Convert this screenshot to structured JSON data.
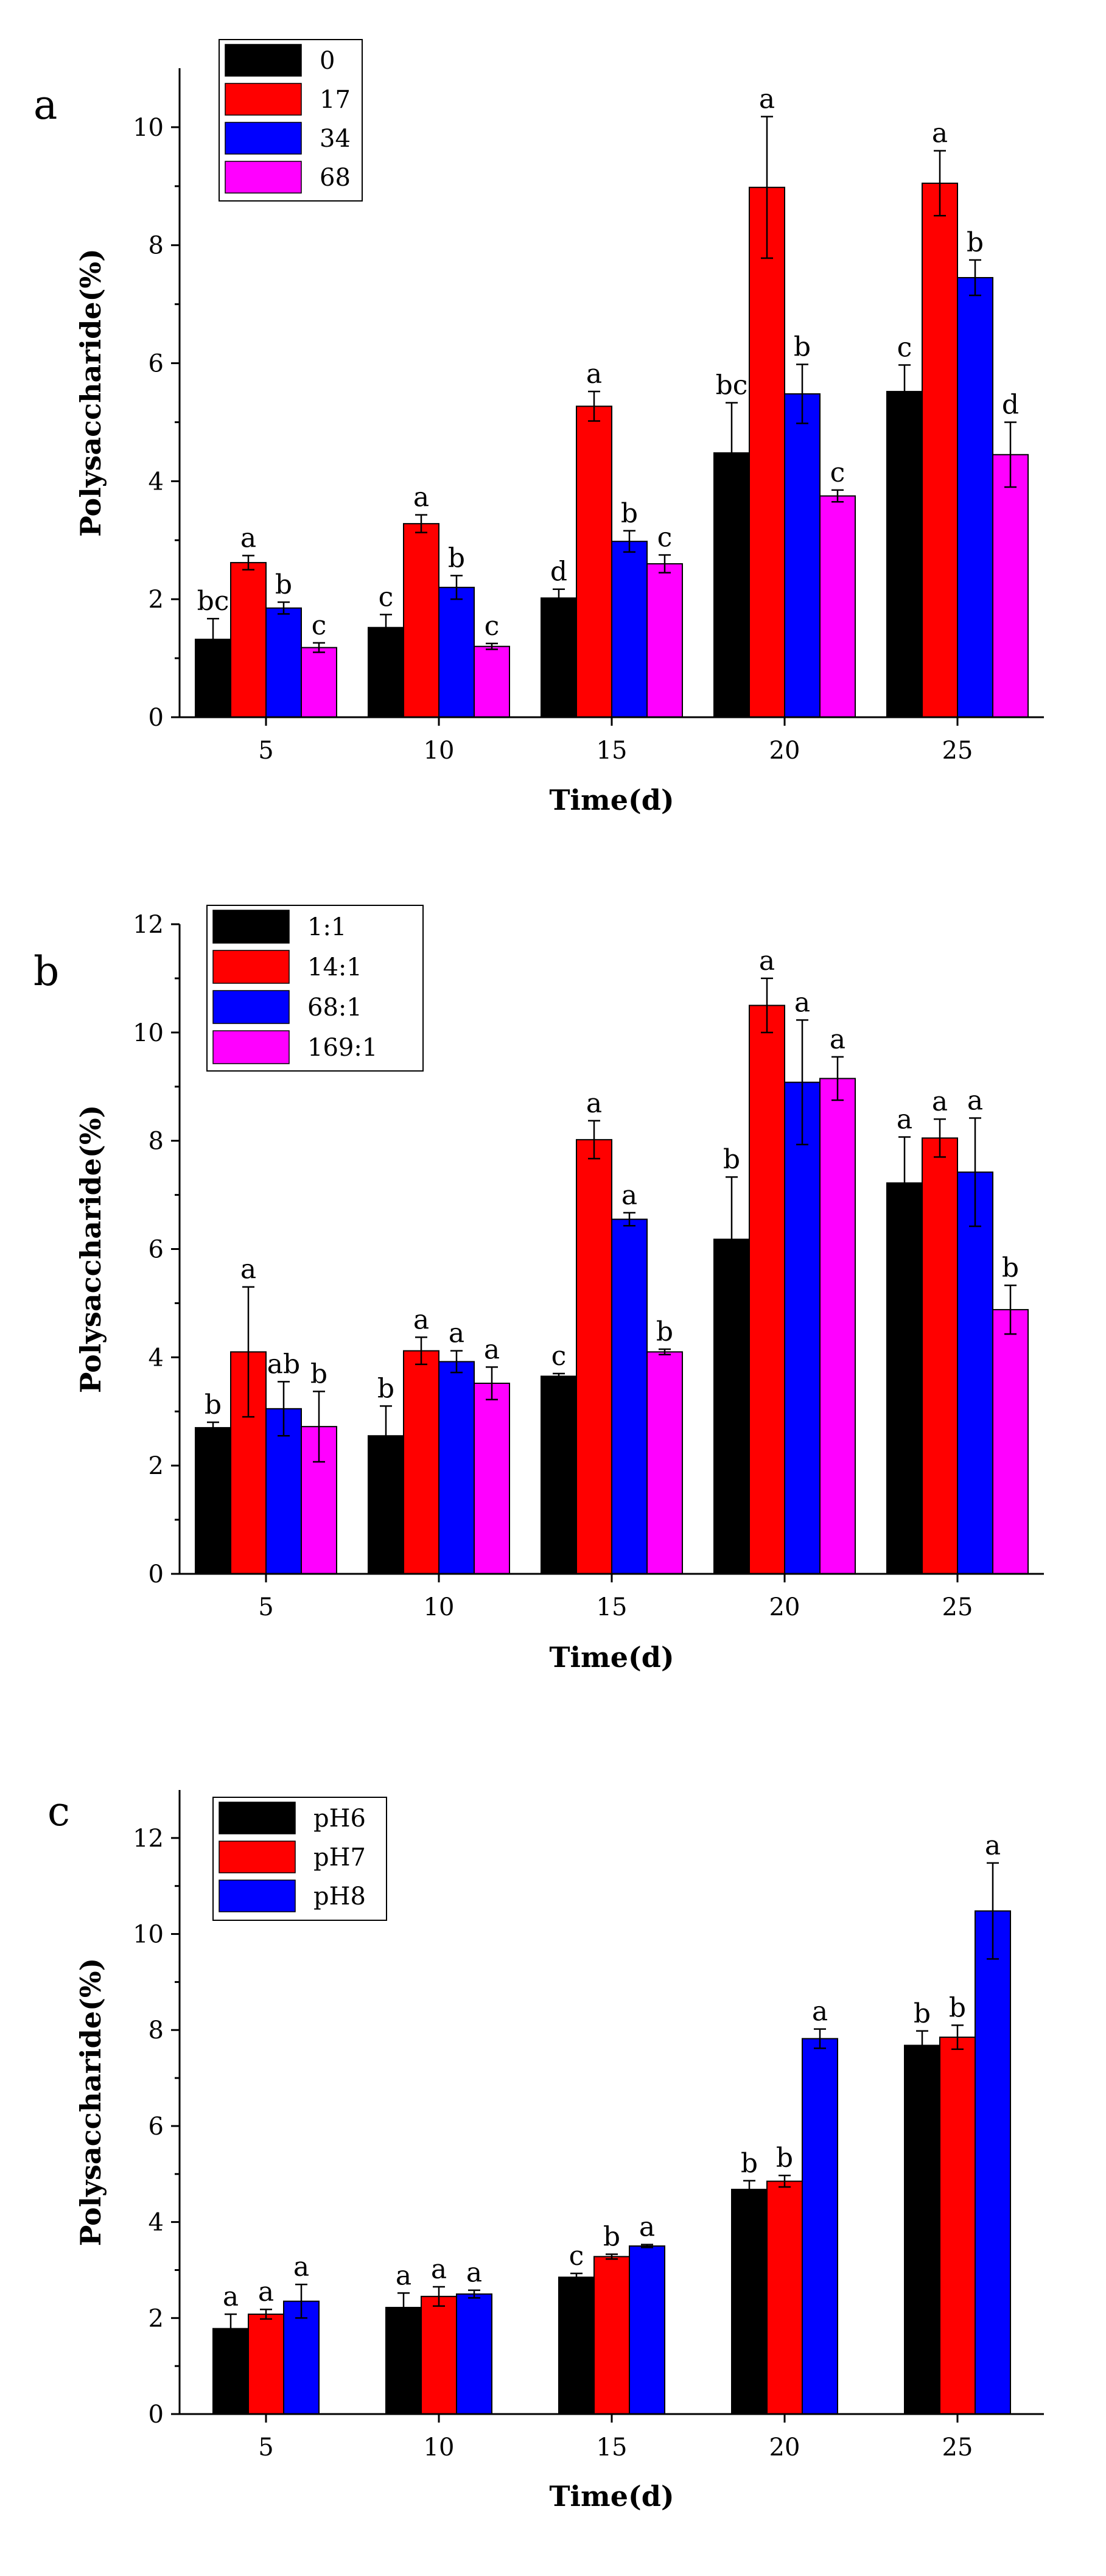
{
  "chart_data": [
    {
      "type": "bar",
      "panel_label": "a",
      "xlabel": "Time(d)",
      "ylabel": "Polysaccharide(%)",
      "ylim": [
        0,
        11
      ],
      "yticks": [
        0,
        2,
        4,
        6,
        8,
        10
      ],
      "categories": [
        "5",
        "10",
        "15",
        "20",
        "25"
      ],
      "legend_position": "top-left",
      "series": [
        {
          "name": "0",
          "color": "#000000",
          "values": [
            1.32,
            1.52,
            2.02,
            4.48,
            5.52
          ],
          "errors": [
            0.35,
            0.22,
            0.15,
            0.85,
            0.45
          ],
          "labels": [
            "bc",
            "c",
            "d",
            "bc",
            "c"
          ]
        },
        {
          "name": "17",
          "color": "#ff0000",
          "values": [
            2.62,
            3.28,
            5.27,
            8.98,
            9.05
          ],
          "errors": [
            0.12,
            0.15,
            0.25,
            1.2,
            0.55
          ],
          "labels": [
            "a",
            "a",
            "a",
            "a",
            "a"
          ]
        },
        {
          "name": "34",
          "color": "#0000ff",
          "values": [
            1.85,
            2.2,
            2.98,
            5.48,
            7.45
          ],
          "errors": [
            0.1,
            0.2,
            0.18,
            0.5,
            0.3
          ],
          "labels": [
            "b",
            "b",
            "b",
            "b",
            "b"
          ]
        },
        {
          "name": "68",
          "color": "#ff00ff",
          "values": [
            1.18,
            1.2,
            2.6,
            3.75,
            4.45
          ],
          "errors": [
            0.08,
            0.05,
            0.15,
            0.1,
            0.55
          ],
          "labels": [
            "c",
            "c",
            "c",
            "c",
            "d"
          ]
        }
      ]
    },
    {
      "type": "bar",
      "panel_label": "b",
      "xlabel": "Time(d)",
      "ylabel": "Polysaccharide(%)",
      "ylim": [
        0,
        12
      ],
      "yticks": [
        0,
        2,
        4,
        6,
        8,
        10,
        12
      ],
      "categories": [
        "5",
        "10",
        "15",
        "20",
        "25"
      ],
      "legend_position": "top-left",
      "series": [
        {
          "name": "1:1",
          "color": "#000000",
          "values": [
            2.7,
            2.55,
            3.65,
            6.18,
            7.22
          ],
          "errors": [
            0.1,
            0.55,
            0.05,
            1.15,
            0.85
          ],
          "labels": [
            "b",
            "b",
            "c",
            "b",
            "a"
          ]
        },
        {
          "name": "14:1",
          "color": "#ff0000",
          "values": [
            4.1,
            4.12,
            8.02,
            10.5,
            8.05
          ],
          "errors": [
            1.2,
            0.25,
            0.35,
            0.5,
            0.35
          ],
          "labels": [
            "a",
            "a",
            "a",
            "a",
            "a"
          ]
        },
        {
          "name": "68:1",
          "color": "#0000ff",
          "values": [
            3.05,
            3.92,
            6.55,
            9.08,
            7.42
          ],
          "errors": [
            0.5,
            0.2,
            0.12,
            1.15,
            1.0
          ],
          "labels": [
            "ab",
            "a",
            "a",
            "a",
            "a"
          ]
        },
        {
          "name": "169:1",
          "color": "#ff00ff",
          "values": [
            2.72,
            3.52,
            4.1,
            9.15,
            4.88
          ],
          "errors": [
            0.65,
            0.3,
            0.05,
            0.4,
            0.45
          ],
          "labels": [
            "b",
            "a",
            "b",
            "a",
            "b"
          ]
        }
      ]
    },
    {
      "type": "bar",
      "panel_label": "c",
      "xlabel": "Time(d)",
      "ylabel": "Polysaccharide(%)",
      "ylim": [
        0,
        13
      ],
      "yticks": [
        0,
        2,
        4,
        6,
        8,
        10,
        12
      ],
      "categories": [
        "5",
        "10",
        "15",
        "20",
        "25"
      ],
      "legend_position": "top-left",
      "series": [
        {
          "name": "pH6",
          "color": "#000000",
          "values": [
            1.78,
            2.22,
            2.85,
            4.68,
            7.68
          ],
          "errors": [
            0.3,
            0.3,
            0.08,
            0.18,
            0.3
          ],
          "labels": [
            "a",
            "a",
            "c",
            "b",
            "b"
          ]
        },
        {
          "name": "pH7",
          "color": "#ff0000",
          "values": [
            2.08,
            2.45,
            3.28,
            4.85,
            7.85
          ],
          "errors": [
            0.1,
            0.2,
            0.05,
            0.12,
            0.25
          ],
          "labels": [
            "a",
            "a",
            "b",
            "b",
            "b"
          ]
        },
        {
          "name": "pH8",
          "color": "#0000ff",
          "values": [
            2.35,
            2.5,
            3.5,
            7.82,
            10.48
          ],
          "errors": [
            0.35,
            0.08,
            0.03,
            0.2,
            1.0
          ],
          "labels": [
            "a",
            "a",
            "a",
            "a",
            "a"
          ]
        }
      ]
    }
  ]
}
